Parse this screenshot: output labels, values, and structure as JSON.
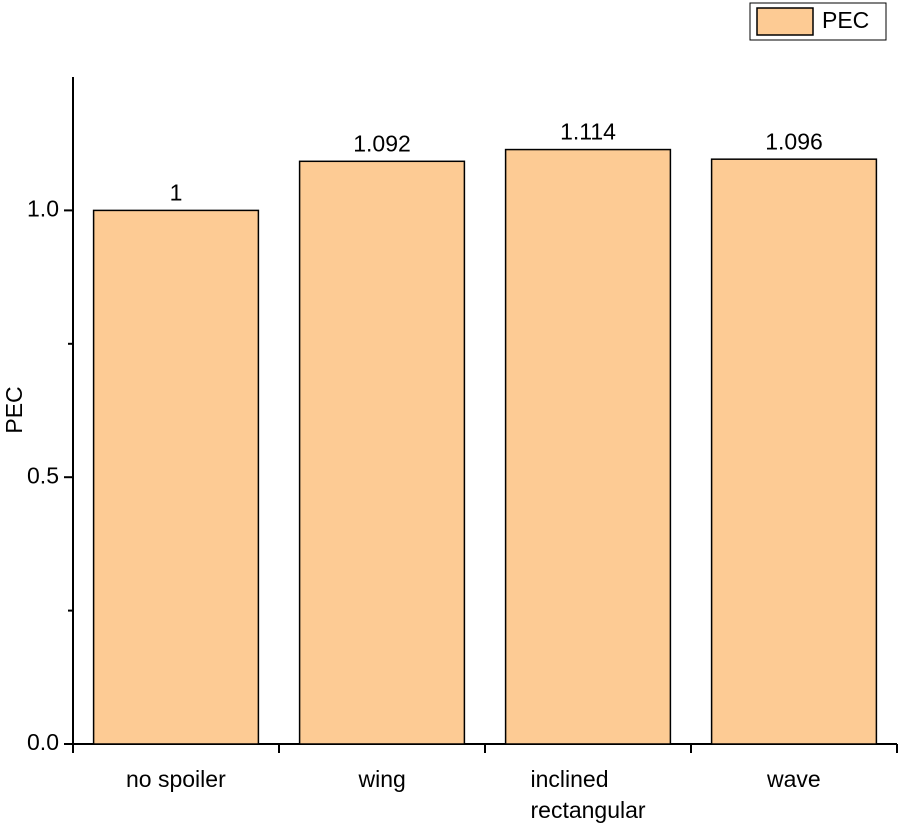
{
  "chart_data": {
    "type": "bar",
    "y_label": "PEC",
    "categories": [
      "no spoiler",
      "wing",
      "inclined\nrectangular",
      "wave"
    ],
    "series": [
      {
        "name": "PEC",
        "color": "#fdcb94",
        "values": [
          1,
          1.092,
          1.114,
          1.096
        ]
      }
    ],
    "ylim": [
      0,
      1.25
    ],
    "yticks": [
      {
        "value": 0,
        "label": "0.0"
      },
      {
        "value": 0.5,
        "label": "0.5"
      },
      {
        "value": 1,
        "label": "1.0"
      }
    ],
    "yminorticks": [
      0.25,
      0.75
    ],
    "legend": "top-right",
    "grid": false
  }
}
